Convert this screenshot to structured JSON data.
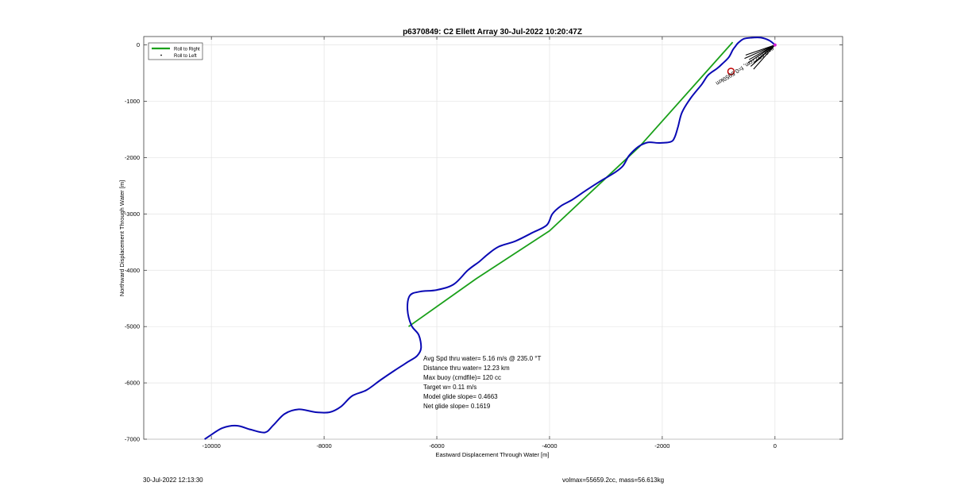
{
  "chart_data": {
    "type": "line",
    "title": "p6370849: C2 Ellett Array 30-Jul-2022 10:20:47Z",
    "xlabel": "Eastward Displacement Through Water [m]",
    "ylabel": "Northward Displacement Through Water [m]",
    "xlim": [
      -11200,
      1200
    ],
    "ylim": [
      -7000,
      150
    ],
    "xticks": [
      -10000,
      -8000,
      -6000,
      -4000,
      -2000,
      0
    ],
    "yticks": [
      0,
      -1000,
      -2000,
      -3000,
      -4000,
      -5000,
      -6000,
      -7000
    ],
    "xtick_labels": [
      "-10000",
      "-8000",
      "-6000",
      "-4000",
      "-2000",
      "0"
    ],
    "ytick_labels": [
      "0",
      "-1000",
      "-2000",
      "-3000",
      "-4000",
      "-5000",
      "-6000",
      "-7000"
    ],
    "grid": true,
    "legend": {
      "position": "top-left",
      "entries": [
        "Roll to Right",
        "Roll to Left"
      ]
    },
    "series": [
      {
        "name": "Roll to Right",
        "color": "#1aa01a",
        "style": "line",
        "x": [
          -6500,
          -5300,
          -4000,
          -2400,
          -750
        ],
        "y": [
          -5000,
          -4150,
          -3300,
          -1800,
          50
        ]
      },
      {
        "name": "Roll to Left",
        "color": "#0a0ab4",
        "style": "line",
        "x": [
          -10120,
          -10000,
          -9800,
          -9550,
          -9300,
          -9050,
          -8900,
          -8700,
          -8450,
          -8150,
          -7900,
          -7700,
          -7500,
          -7250,
          -7000,
          -6750,
          -6500,
          -6350,
          -6280,
          -6320,
          -6450,
          -6520,
          -6480,
          -6300,
          -6000,
          -5700,
          -5450,
          -5250,
          -5100,
          -4900,
          -4600,
          -4300,
          -4050,
          -3950,
          -3800,
          -3600,
          -3350,
          -3100,
          -2850,
          -2700,
          -2600,
          -2500,
          -2400,
          -2250,
          -2050,
          -1850,
          -1780,
          -1720,
          -1650,
          -1500,
          -1300,
          -1200,
          -1120,
          -1030,
          -930,
          -820,
          -750,
          -700,
          -650,
          -550,
          -400,
          -250,
          -100,
          0
        ],
        "y": [
          -7000,
          -6920,
          -6800,
          -6760,
          -6830,
          -6880,
          -6750,
          -6550,
          -6470,
          -6520,
          -6520,
          -6420,
          -6230,
          -6130,
          -5950,
          -5780,
          -5620,
          -5520,
          -5380,
          -5150,
          -4980,
          -4700,
          -4450,
          -4380,
          -4350,
          -4250,
          -4000,
          -3850,
          -3720,
          -3580,
          -3480,
          -3330,
          -3200,
          -3000,
          -2860,
          -2750,
          -2580,
          -2420,
          -2270,
          -2150,
          -1980,
          -1870,
          -1790,
          -1730,
          -1740,
          -1720,
          -1640,
          -1450,
          -1200,
          -950,
          -700,
          -550,
          -480,
          -420,
          -330,
          -220,
          -90,
          -20,
          40,
          110,
          130,
          130,
          80,
          0
        ]
      }
    ],
    "annotations": [
      {
        "text": "Avg Spd thru water=  5.16 m/s @ 235.0 °T"
      },
      {
        "text": "Distance thru water= 12.23 km"
      },
      {
        "text": "Max buoy (cmdfile)= 120 cc"
      },
      {
        "text": "Target w= 0.11 m/s"
      },
      {
        "text": "Model glide slope= 0.4663"
      },
      {
        "text": "Net glide slope= 0.1619"
      }
    ],
    "marker": {
      "label": "e=0.6577cm, f=0.5959km",
      "x": -780,
      "y": -470,
      "color": "#c00000"
    },
    "current_vector_color": "#000000"
  },
  "footer": {
    "left": "30-Jul-2022 12:13:30",
    "right": "volmax=55659.2cc, mass=56.613kg"
  }
}
